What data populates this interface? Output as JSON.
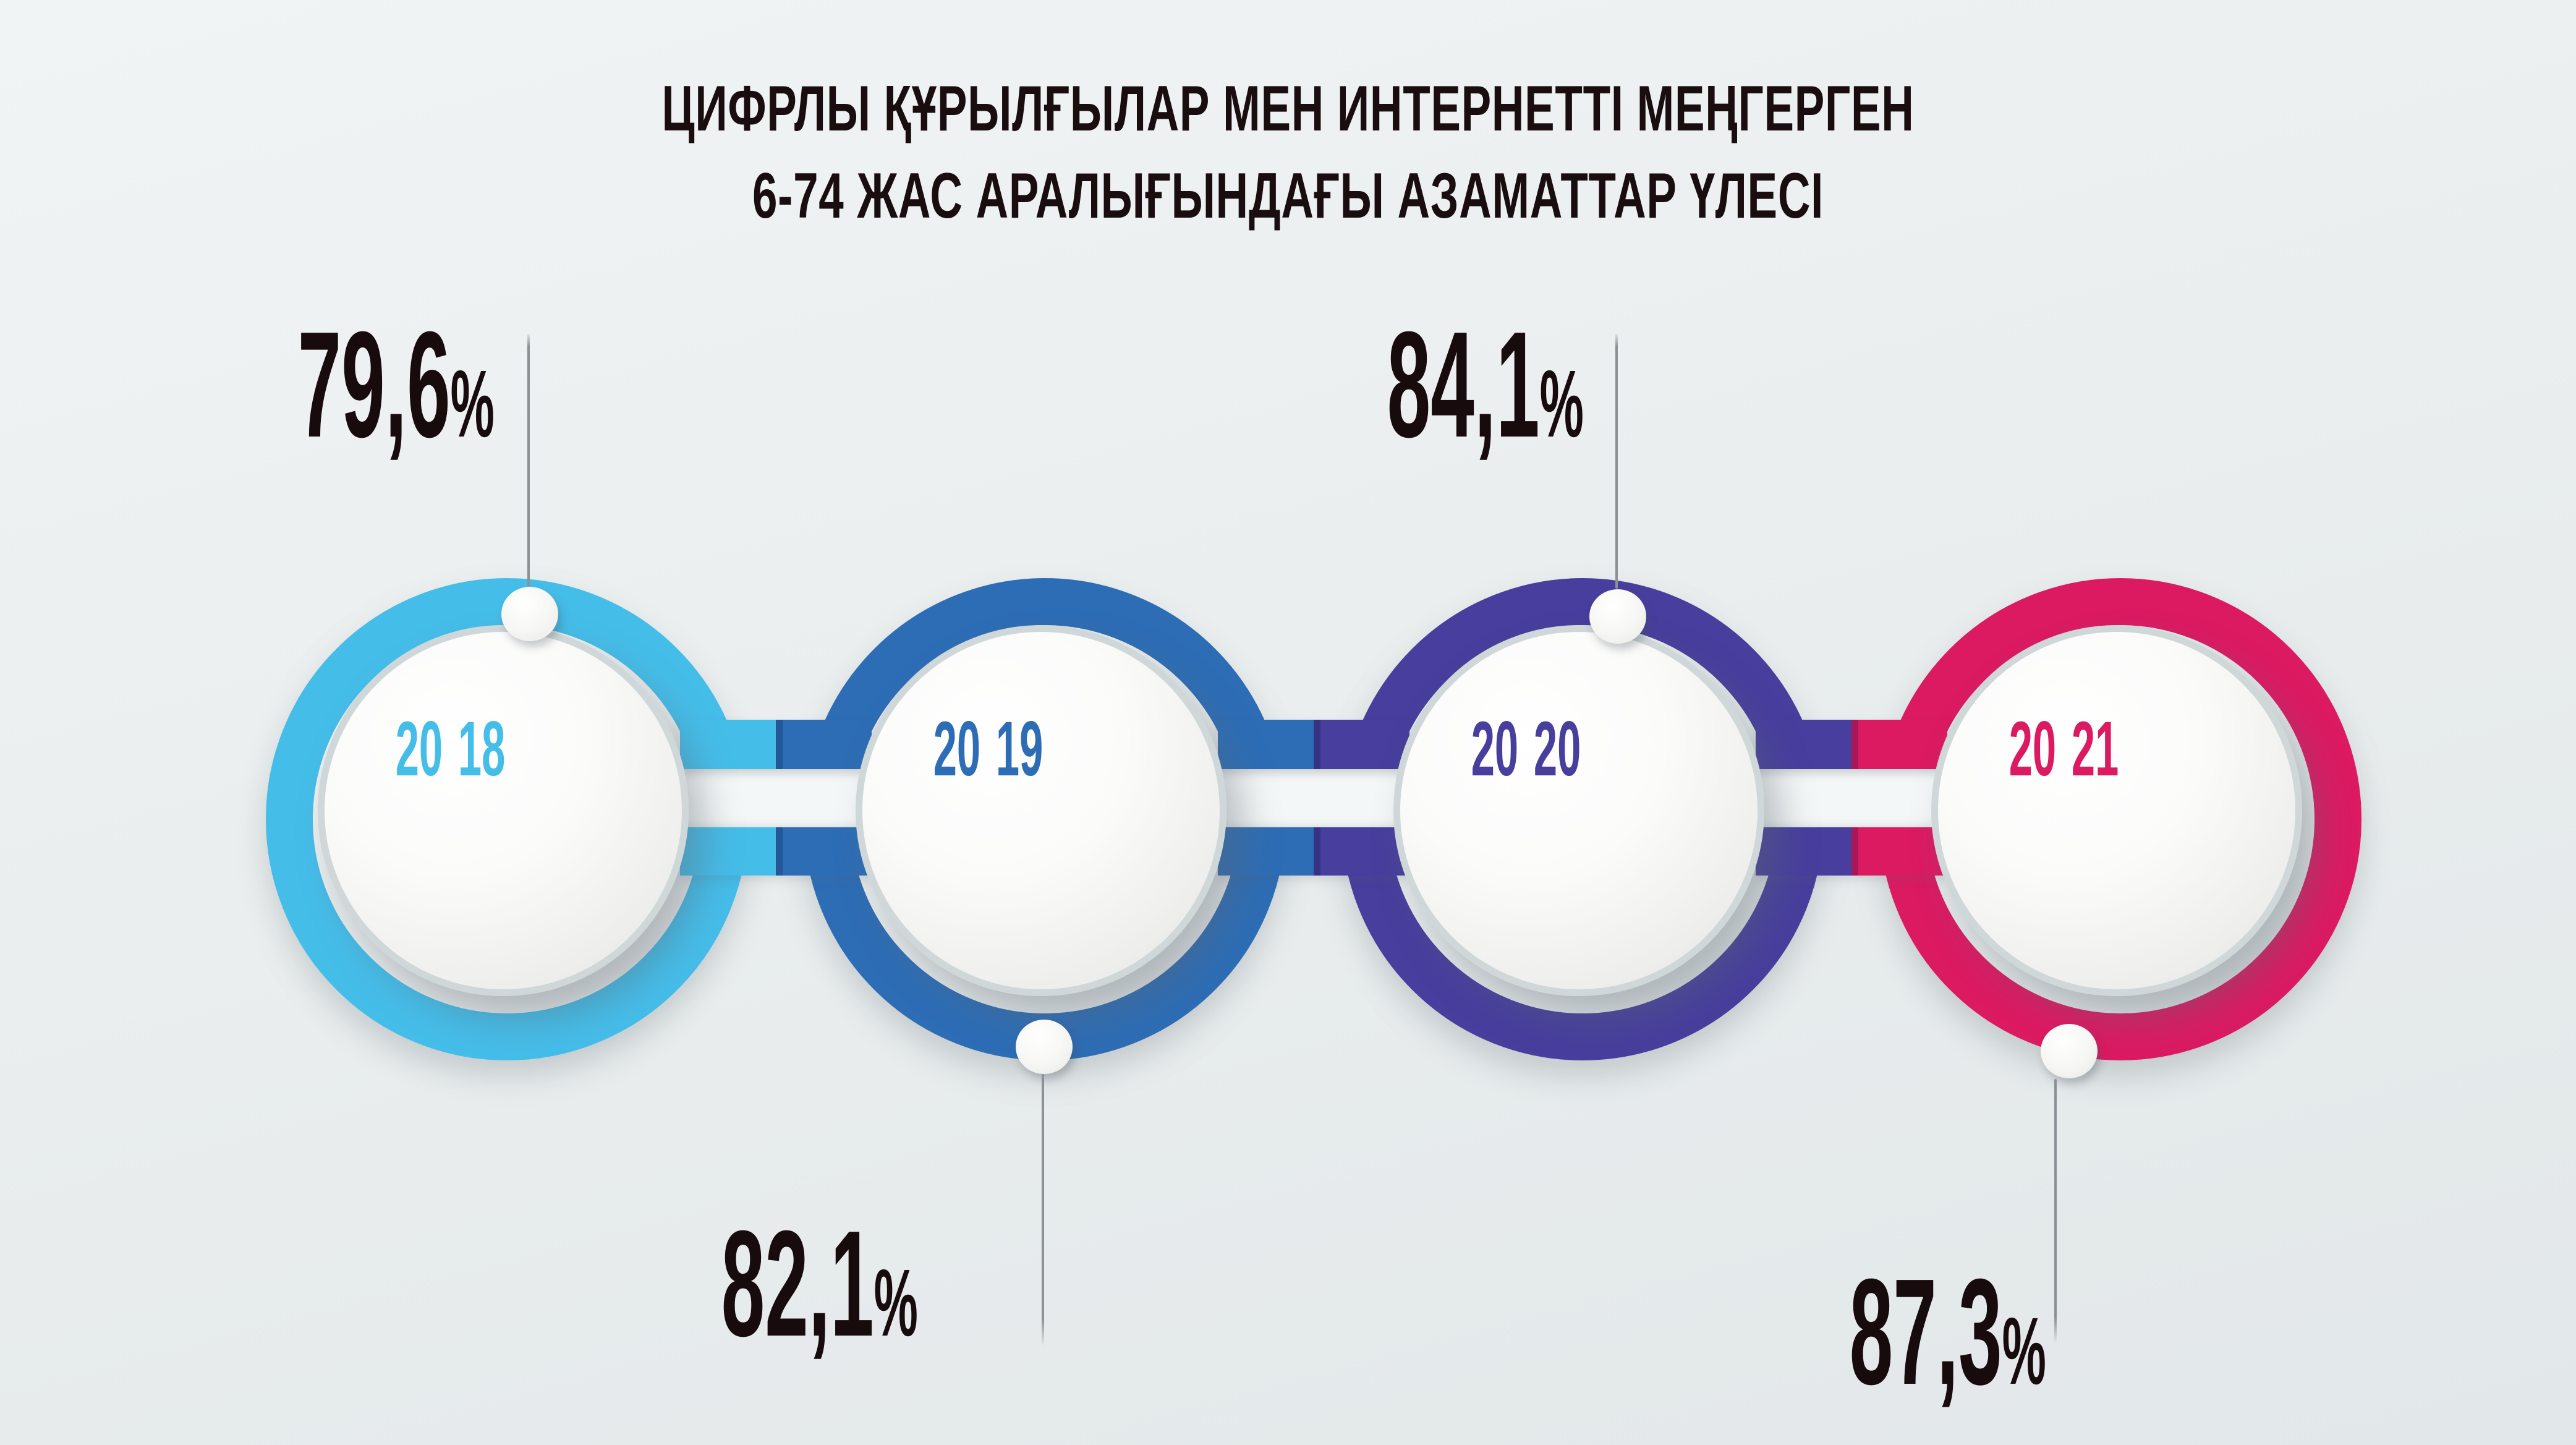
{
  "title": {
    "line1": "ЦИФРЛЫ ҚҰРЫЛҒЫЛАР МЕН ИНТЕРНЕТТІ МЕҢГЕРГЕН",
    "line2": "6-74 ЖАС АРАЛЫҒЫНДАҒЫ АЗАМАТТАР ҮЛЕСІ"
  },
  "chart_data": {
    "type": "bar",
    "title": "ЦИФРЛЫ ҚҰРЫЛҒЫЛАР МЕН ИНТЕРНЕТТІ МЕҢГЕРГЕН 6-74 ЖАС АРАЛЫҒЫНДАҒЫ АЗАМАТТАР ҮЛЕСІ",
    "categories": [
      "2018",
      "2019",
      "2020",
      "2021"
    ],
    "values": [
      79.6,
      82.1,
      84.1,
      87.3
    ],
    "value_labels": [
      "79,6%",
      "82,1%",
      "84,1%",
      "87,3%"
    ],
    "xlabel": "",
    "ylabel": "",
    "legend_position": "none",
    "layout": "horizontal timeline of linked rings; value labels alternate above (2018, 2020) and below (2019, 2021) connected by thin vertical pointer lines"
  },
  "timeline": {
    "items": [
      {
        "year": "2018",
        "year_a": "20",
        "year_b": "18",
        "value": "79,6",
        "percent_sign": "%",
        "color": "#45bde9",
        "label_position": "top"
      },
      {
        "year": "2019",
        "year_a": "20",
        "year_b": "19",
        "value": "82,1",
        "percent_sign": "%",
        "color": "#2d6db5",
        "label_position": "bottom"
      },
      {
        "year": "2020",
        "year_a": "20",
        "year_b": "20",
        "value": "84,1",
        "percent_sign": "%",
        "color": "#473e9d",
        "label_position": "top"
      },
      {
        "year": "2021",
        "year_a": "20",
        "year_b": "21",
        "value": "87,3",
        "percent_sign": "%",
        "color": "#db1a62",
        "label_position": "bottom"
      }
    ]
  },
  "colors": {
    "background": "#e9edee",
    "mid_band": "#f4f7f7",
    "text": "#190d0f",
    "pointer_line": "#8b9194",
    "disc_rim": "#cfd7d9"
  }
}
